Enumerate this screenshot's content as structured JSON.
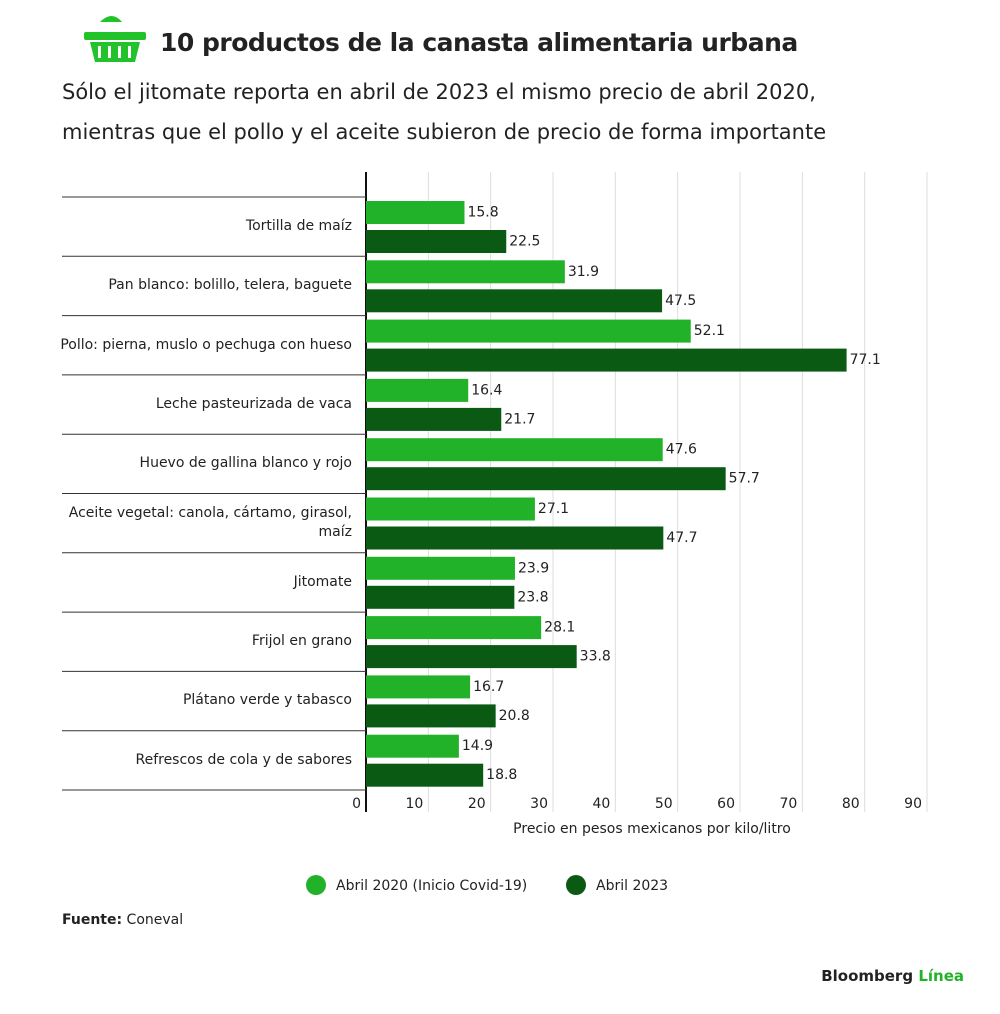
{
  "chart_data": {
    "type": "hbar",
    "title": "10 productos de la canasta alimentaria urbana",
    "subtitle": "Sólo el jitomate reporta en abril de 2023 el mismo precio de abril 2020, mientras que el pollo y el aceite subieron de precio de forma importante",
    "categories": [
      "Tortilla de maíz",
      "Pan blanco: bolillo, telera, baguete",
      "Pollo: pierna, muslo o pechuga con hueso",
      "Leche pasteurizada de vaca",
      "Huevo de gallina blanco y rojo",
      "Aceite vegetal: canola, cártamo, girasol, maíz",
      "Jitomate",
      "Frijol en grano",
      "Plátano verde y tabasco",
      "Refrescos de cola y de sabores"
    ],
    "series": [
      {
        "name": "Abril 2020 (Inicio Covid-19)",
        "color": "#22b22a",
        "values": [
          15.8,
          31.9,
          52.1,
          16.4,
          47.6,
          27.1,
          23.9,
          28.1,
          16.7,
          14.9
        ]
      },
      {
        "name": "Abril 2023",
        "color": "#0b5a14",
        "values": [
          22.5,
          47.5,
          77.1,
          21.7,
          57.7,
          47.7,
          23.8,
          33.8,
          20.8,
          18.8
        ]
      }
    ],
    "xlabel": "Precio en pesos mexicanos por kilo/litro",
    "xlim": [
      0,
      90
    ],
    "xticks": [
      0,
      10,
      20,
      30,
      40,
      50,
      60,
      70,
      80,
      90
    ],
    "grid": true,
    "source_label": "Fuente:",
    "source": "Coneval",
    "brand": "Bloomberg",
    "brand_accent": "Línea"
  }
}
